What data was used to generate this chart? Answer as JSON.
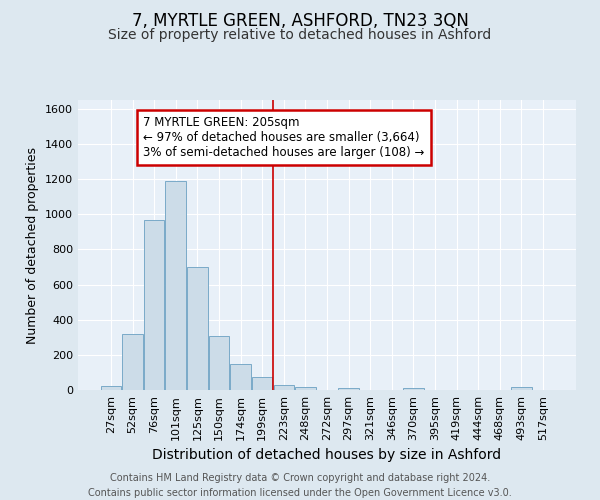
{
  "title": "7, MYRTLE GREEN, ASHFORD, TN23 3QN",
  "subtitle": "Size of property relative to detached houses in Ashford",
  "xlabel": "Distribution of detached houses by size in Ashford",
  "ylabel": "Number of detached properties",
  "bin_labels": [
    "27sqm",
    "52sqm",
    "76sqm",
    "101sqm",
    "125sqm",
    "150sqm",
    "174sqm",
    "199sqm",
    "223sqm",
    "248sqm",
    "272sqm",
    "297sqm",
    "321sqm",
    "346sqm",
    "370sqm",
    "395sqm",
    "419sqm",
    "444sqm",
    "468sqm",
    "493sqm",
    "517sqm"
  ],
  "bar_values": [
    25,
    320,
    970,
    1190,
    700,
    310,
    150,
    75,
    30,
    15,
    0,
    12,
    0,
    0,
    12,
    0,
    0,
    0,
    0,
    18,
    0
  ],
  "bar_color": "#ccdce8",
  "bar_edge_color": "#7aaac8",
  "vline_color": "#cc0000",
  "annotation_line1": "7 MYRTLE GREEN: 205sqm",
  "annotation_line2": "← 97% of detached houses are smaller (3,664)",
  "annotation_line3": "3% of semi-detached houses are larger (108) →",
  "annotation_box_color": "#ffffff",
  "annotation_box_edge": "#cc0000",
  "ylim": [
    0,
    1650
  ],
  "yticks": [
    0,
    200,
    400,
    600,
    800,
    1000,
    1200,
    1400,
    1600
  ],
  "background_color": "#dde8f0",
  "plot_bg_color": "#e8f0f8",
  "footer_line1": "Contains HM Land Registry data © Crown copyright and database right 2024.",
  "footer_line2": "Contains public sector information licensed under the Open Government Licence v3.0.",
  "title_fontsize": 12,
  "subtitle_fontsize": 10,
  "xlabel_fontsize": 10,
  "ylabel_fontsize": 9,
  "tick_fontsize": 8,
  "footer_fontsize": 7
}
